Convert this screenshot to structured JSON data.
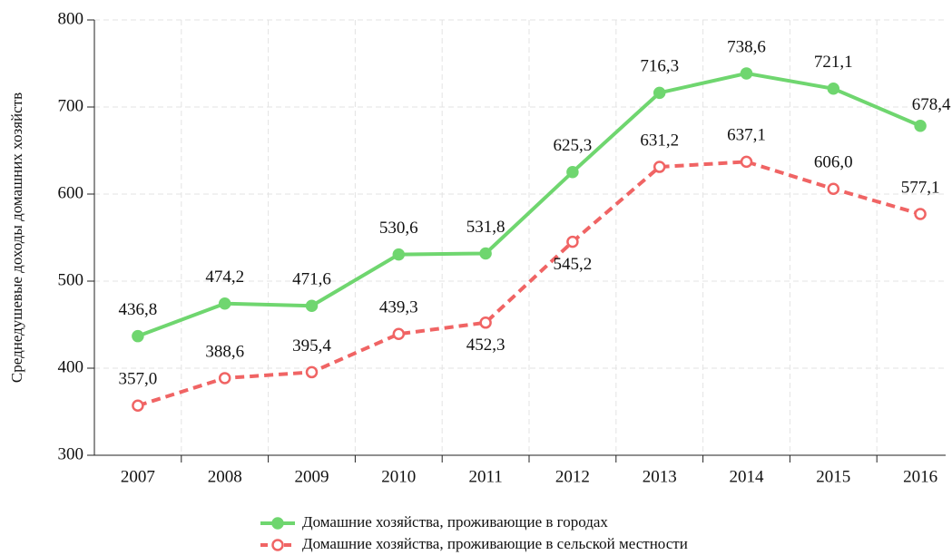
{
  "chart_data": {
    "type": "line",
    "y_label": "Среднедушевые доходы домашних хозяйств",
    "categories": [
      "2007",
      "2008",
      "2009",
      "2010",
      "2011",
      "2012",
      "2013",
      "2014",
      "2015",
      "2016"
    ],
    "series": [
      {
        "name": "Домашние хозяйства, проживающие в городах",
        "color": "#6fd66f",
        "dashed": false,
        "marker": "filled",
        "values": [
          436.8,
          474.2,
          471.6,
          530.6,
          531.8,
          625.3,
          716.3,
          738.6,
          721.1,
          678.4
        ],
        "value_labels": [
          "436,8",
          "474,2",
          "471,6",
          "530,6",
          "531,8",
          "625,3",
          "716,3",
          "738,6",
          "721,1",
          "678,4"
        ]
      },
      {
        "name": "Домашние хозяйства, проживающие в сельской местности",
        "color": "#f06464",
        "dashed": true,
        "marker": "open",
        "values": [
          357.0,
          388.6,
          395.4,
          439.3,
          452.3,
          545.2,
          631.2,
          637.1,
          606.0,
          577.1
        ],
        "value_labels": [
          "357,0",
          "388,6",
          "395,4",
          "439,3",
          "452,3",
          "545,2",
          "631,2",
          "637,1",
          "606,0",
          "577,1"
        ]
      }
    ],
    "ylim": [
      300,
      800
    ],
    "yticks": [
      300,
      400,
      500,
      600,
      700,
      800
    ],
    "grid": true,
    "legend": "bottom"
  }
}
